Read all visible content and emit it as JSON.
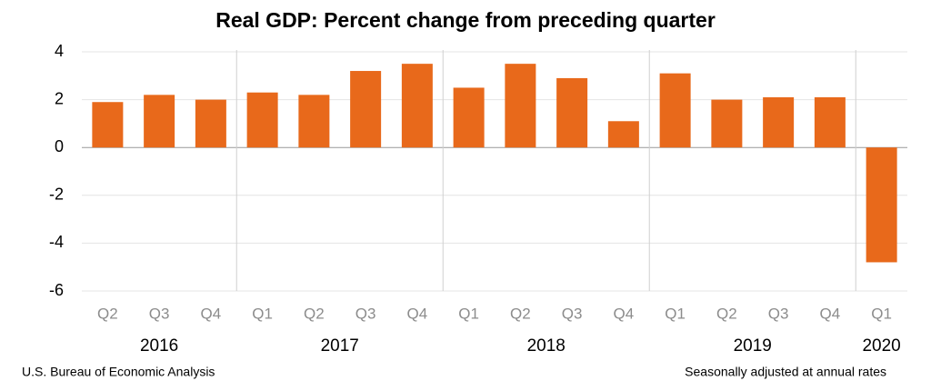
{
  "chart_data": {
    "type": "bar",
    "title": "Real GDP:  Percent change from preceding quarter",
    "categories": [
      "Q2",
      "Q3",
      "Q4",
      "Q1",
      "Q2",
      "Q3",
      "Q4",
      "Q1",
      "Q2",
      "Q3",
      "Q4",
      "Q1",
      "Q2",
      "Q3",
      "Q4",
      "Q1"
    ],
    "values": [
      1.9,
      2.2,
      2.0,
      2.3,
      2.2,
      3.2,
      3.5,
      2.5,
      3.5,
      2.9,
      1.1,
      3.1,
      2.0,
      2.1,
      2.1,
      -4.8
    ],
    "groups": [
      {
        "label": "2016",
        "size": 3
      },
      {
        "label": "2017",
        "size": 4
      },
      {
        "label": "2018",
        "size": 4
      },
      {
        "label": "2019",
        "size": 4
      },
      {
        "label": "2020",
        "size": 1
      }
    ],
    "color": "#e8691b",
    "ylim": [
      -6,
      4
    ],
    "yticks": [
      4,
      2,
      0,
      -2,
      -4,
      -6
    ],
    "grid": true,
    "source": "U.S. Bureau of Economic Analysis",
    "note": "Seasonally adjusted at annual rates"
  }
}
